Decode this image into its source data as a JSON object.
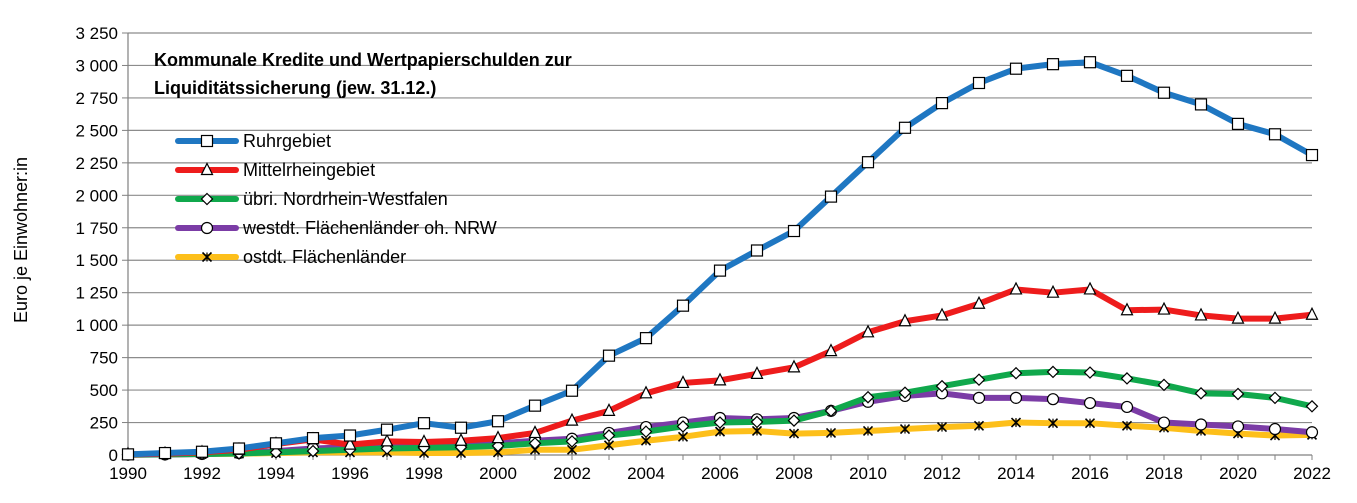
{
  "chart_data": {
    "type": "line",
    "title_lines": [
      "Kommunale Kredite und Wertpapierschulden zur",
      "Liquiditätssicherung (jew. 31.12.)"
    ],
    "ylabel": "Euro je Einwohner:in",
    "xlabel": "",
    "ylim": [
      0,
      3250
    ],
    "xlim": [
      1990,
      2022
    ],
    "y_ticks": [
      0,
      250,
      500,
      750,
      1000,
      1250,
      1500,
      1750,
      2000,
      2250,
      2500,
      2750,
      3000,
      3250
    ],
    "y_tick_labels": [
      "0",
      "250",
      "500",
      "750",
      "1 000",
      "1 250",
      "1 500",
      "1 750",
      "2 000",
      "2 250",
      "2 500",
      "2 750",
      "3 000",
      "3 250"
    ],
    "x_ticks": [
      1990,
      1992,
      1994,
      1996,
      1998,
      2000,
      2002,
      2004,
      2006,
      2008,
      2010,
      2012,
      2014,
      2016,
      2018,
      2020,
      2022
    ],
    "x_tick_labels": [
      "1990",
      "1992",
      "1994",
      "1996",
      "1998",
      "2000",
      "2002",
      "2004",
      "2006",
      "2008",
      "2010",
      "2012",
      "2014",
      "2016",
      "2018",
      "2020",
      "2022"
    ],
    "grid": "horizontal",
    "legend_position": "top-left",
    "x": [
      1990,
      1991,
      1992,
      1993,
      1994,
      1995,
      1996,
      1997,
      1998,
      1999,
      2000,
      2001,
      2002,
      2003,
      2004,
      2005,
      2006,
      2007,
      2008,
      2009,
      2010,
      2011,
      2012,
      2013,
      2014,
      2015,
      2016,
      2017,
      2018,
      2019,
      2020,
      2021,
      2022
    ],
    "series": [
      {
        "name": "Ruhrgebiet",
        "color": "#1F77C2",
        "marker": "square",
        "values": [
          5,
          15,
          25,
          50,
          90,
          130,
          150,
          195,
          245,
          210,
          260,
          380,
          495,
          765,
          900,
          1150,
          1420,
          1575,
          1725,
          1990,
          2255,
          2520,
          2710,
          2865,
          2975,
          3010,
          3025,
          2920,
          2790,
          2700,
          2550,
          2470,
          2310
        ]
      },
      {
        "name": "Mittelrheingebiet",
        "color": "#EE1C1C",
        "marker": "triangle",
        "values": [
          5,
          10,
          20,
          40,
          85,
          120,
          80,
          105,
          100,
          110,
          130,
          170,
          265,
          340,
          475,
          555,
          575,
          625,
          675,
          800,
          945,
          1030,
          1075,
          1165,
          1275,
          1250,
          1275,
          1115,
          1120,
          1075,
          1050,
          1050,
          1080
        ]
      },
      {
        "name": "übri. Nordrhein-Westfalen",
        "color": "#10A84C",
        "marker": "diamond",
        "values": [
          3,
          5,
          8,
          12,
          20,
          30,
          40,
          50,
          55,
          60,
          70,
          90,
          105,
          150,
          180,
          220,
          250,
          255,
          265,
          340,
          445,
          480,
          530,
          580,
          630,
          640,
          635,
          590,
          540,
          475,
          470,
          440,
          375
        ]
      },
      {
        "name": "westdt. Flächenländer oh. NRW",
        "color": "#7B3CA6",
        "marker": "circle",
        "values": [
          2,
          4,
          8,
          15,
          30,
          50,
          60,
          70,
          75,
          80,
          90,
          110,
          125,
          170,
          215,
          250,
          285,
          275,
          285,
          340,
          410,
          455,
          475,
          440,
          440,
          430,
          400,
          370,
          250,
          235,
          220,
          200,
          175
        ]
      },
      {
        "name": "ostdt. Flächenländer",
        "color": "#FDBF1A",
        "marker": "x",
        "values": [
          2,
          5,
          8,
          10,
          15,
          20,
          20,
          20,
          15,
          15,
          20,
          40,
          40,
          75,
          110,
          140,
          180,
          185,
          165,
          170,
          185,
          200,
          215,
          225,
          250,
          245,
          245,
          225,
          210,
          185,
          165,
          150,
          155
        ]
      }
    ]
  }
}
